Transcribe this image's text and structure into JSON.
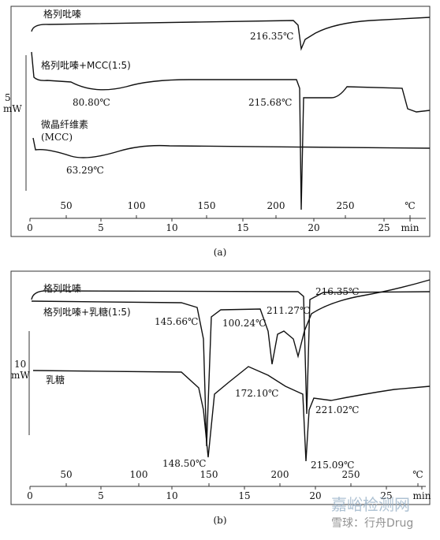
{
  "panel_a": {
    "curve_labels": [
      "格列吡嗪",
      "格列吡嗪+MCC(1:5)",
      "微晶纤维素",
      "(MCC)"
    ],
    "annotations": [
      "216.35℃",
      "80.80℃",
      "215.68℃",
      "63.29℃"
    ],
    "scale_label": [
      "5",
      "mW"
    ],
    "temp_ticks": [
      "50",
      "100",
      "150",
      "200",
      "250",
      "℃"
    ],
    "time_ticks": [
      "0",
      "5",
      "10",
      "15",
      "20",
      "25",
      "min"
    ],
    "caption": "(a)"
  },
  "panel_b": {
    "curve_labels": [
      "格列吡嗪",
      "格列吡嗪+乳糖(1:5)",
      "乳糖"
    ],
    "annotations": [
      "216.35℃",
      "145.66℃",
      "100.24℃",
      "211.27℃",
      "172.10℃",
      "221.02℃",
      "148.50℃",
      "215.09℃"
    ],
    "scale_label": [
      "10",
      "mW"
    ],
    "temp_ticks": [
      "50",
      "100",
      "150",
      "200",
      "250",
      "℃"
    ],
    "time_ticks": [
      "0",
      "5",
      "10",
      "15",
      "20",
      "25",
      "min"
    ],
    "caption": "(b)"
  },
  "watermark": [
    "嘉峪检测网",
    "雪球：行舟Drug"
  ]
}
